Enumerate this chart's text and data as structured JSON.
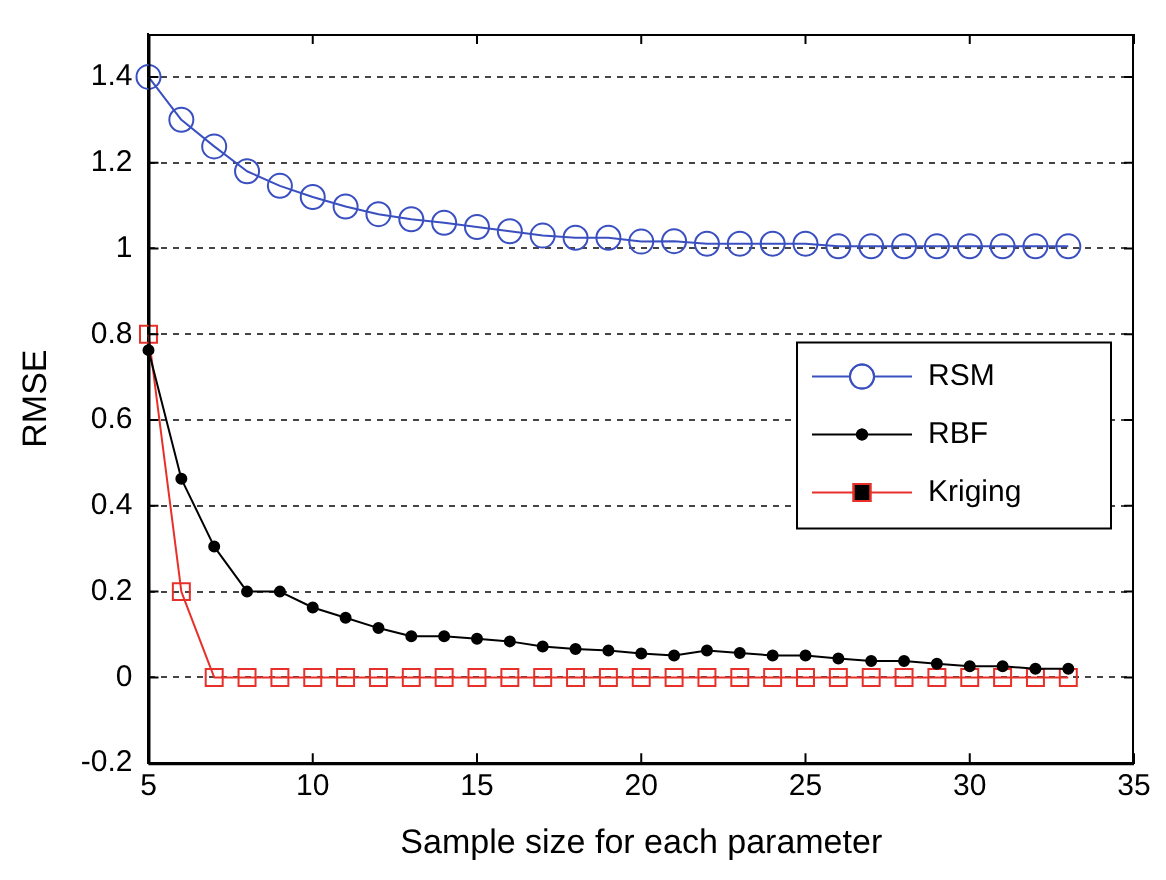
{
  "chart_data": {
    "type": "line",
    "xlabel": "Sample size for each parameter",
    "ylabel": "RMSE",
    "x": [
      5,
      6,
      7,
      8,
      9,
      10,
      11,
      12,
      13,
      14,
      15,
      16,
      17,
      18,
      19,
      20,
      21,
      22,
      23,
      24,
      25,
      26,
      27,
      28,
      29,
      30,
      31,
      32,
      33
    ],
    "series": [
      {
        "name": "RSM",
        "color": "#3a4fc0",
        "marker": "circle",
        "values": [
          1.4,
          1.3,
          1.238,
          1.18,
          1.146,
          1.12,
          1.098,
          1.08,
          1.068,
          1.06,
          1.05,
          1.04,
          1.03,
          1.025,
          1.025,
          1.016,
          1.017,
          1.011,
          1.011,
          1.011,
          1.011,
          1.005,
          1.005,
          1.005,
          1.005,
          1.005,
          1.005,
          1.005,
          1.005
        ]
      },
      {
        "name": "RBF",
        "color": "#000000",
        "marker": "dot",
        "values": [
          0.763,
          0.463,
          0.305,
          0.2,
          0.2,
          0.163,
          0.139,
          0.115,
          0.096,
          0.096,
          0.09,
          0.084,
          0.072,
          0.066,
          0.063,
          0.056,
          0.051,
          0.063,
          0.057,
          0.051,
          0.051,
          0.044,
          0.038,
          0.038,
          0.032,
          0.026,
          0.026,
          0.02,
          0.02
        ]
      },
      {
        "name": "Kriging",
        "color": "#e8302a",
        "marker": "square",
        "values": [
          0.8,
          0.2,
          0,
          0,
          0,
          0,
          0,
          0,
          0,
          0,
          0,
          0,
          0,
          0,
          0,
          0,
          0,
          0,
          0,
          0,
          0,
          0,
          0,
          0,
          0,
          0,
          0,
          0,
          0
        ]
      }
    ],
    "xlim": [
      5,
      35
    ],
    "xticks": [
      5,
      10,
      15,
      20,
      25,
      30,
      35
    ],
    "ylim": [
      -0.2,
      1.5
    ],
    "yticks": [
      -0.2,
      0,
      0.2,
      0.4,
      0.6,
      0.8,
      1,
      1.2,
      1.4
    ],
    "grid": "y",
    "legend": "right",
    "line_style": "solid"
  }
}
